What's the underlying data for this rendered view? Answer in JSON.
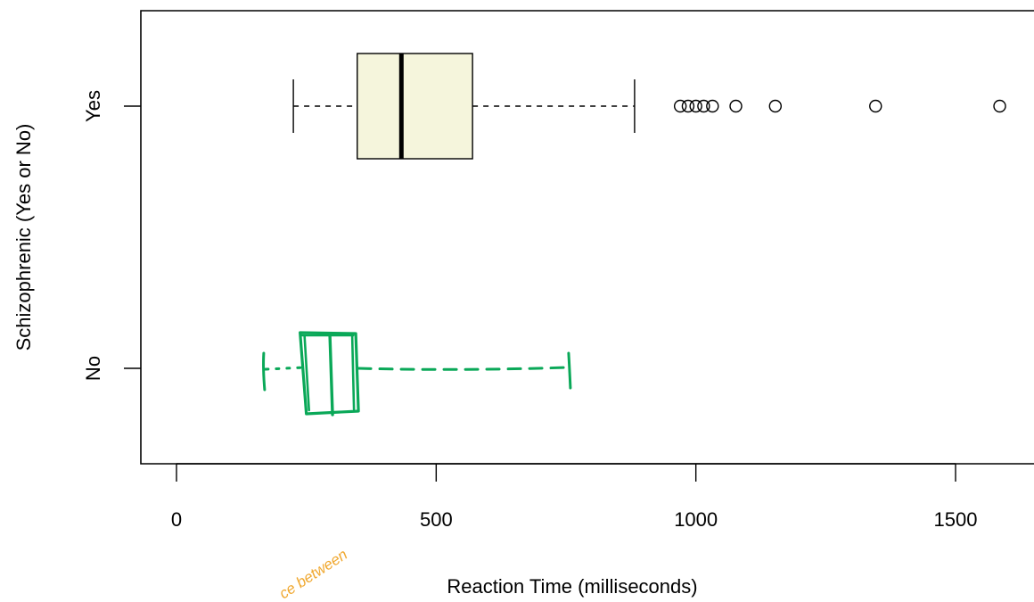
{
  "chart_data": {
    "type": "boxplot",
    "orientation": "horizontal",
    "title": "",
    "xlabel": "Reaction Time (milliseconds)",
    "ylabel": "Schizophrenic (Yes or No)",
    "xlim": [
      -70,
      1650
    ],
    "xticks": [
      0,
      500,
      1000,
      1500
    ],
    "grid": false,
    "legend": "none",
    "series": [
      {
        "name": "Yes",
        "min": 225,
        "q1": 348,
        "median": 433,
        "q3": 570,
        "max": 882,
        "outliers": [
          970,
          985,
          1000,
          1015,
          1032,
          1077,
          1153,
          1346,
          1585
        ],
        "fill": "#f5f5dc",
        "stroke": "#000000",
        "hand_drawn": false
      },
      {
        "name": "No",
        "min": 168,
        "q1": 250,
        "median": 297,
        "q3": 340,
        "max": 755,
        "outliers": [],
        "fill": "none",
        "stroke": "#0aa858",
        "hand_drawn": true
      }
    ],
    "annotation": {
      "text": "ce between",
      "color": "#f0a830",
      "style": "handwritten, partially cut off"
    }
  }
}
